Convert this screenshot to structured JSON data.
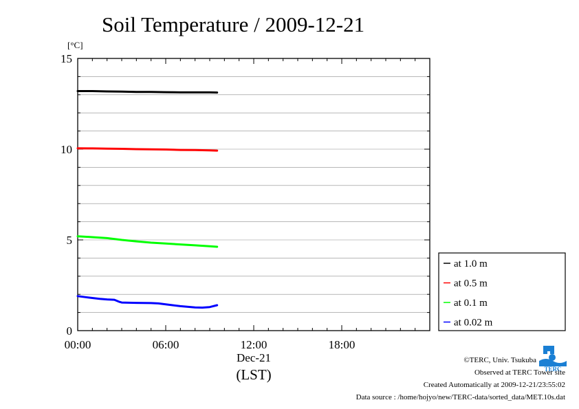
{
  "chart_data": {
    "type": "line",
    "title": "Soil Temperature / 2009-12-21",
    "y_unit_label": "[°C]",
    "ylim": [
      0,
      15
    ],
    "y_ticks": [
      0,
      5,
      10,
      15
    ],
    "y_minor_step": 1,
    "xlim_hours": [
      0,
      24
    ],
    "x_ticks": [
      {
        "hour": 0,
        "label": "00:00"
      },
      {
        "hour": 6,
        "label": "06:00"
      },
      {
        "hour": 12,
        "label": "12:00"
      },
      {
        "hour": 18,
        "label": "18:00"
      }
    ],
    "x_date_label": "Dec-21",
    "x_axis_label": "(LST)",
    "grid": true,
    "legend_position": "bottom-right outside",
    "series": [
      {
        "name": "at 1.0 m",
        "color": "#000000",
        "x": [
          0,
          1,
          2,
          3,
          4,
          5,
          6,
          7,
          8,
          9,
          9.5
        ],
        "y": [
          13.2,
          13.2,
          13.18,
          13.17,
          13.15,
          13.15,
          13.14,
          13.13,
          13.13,
          13.13,
          13.12
        ]
      },
      {
        "name": "at 0.5 m",
        "color": "#ff0000",
        "x": [
          0,
          1,
          2,
          3,
          4,
          5,
          6,
          7,
          8,
          9,
          9.5
        ],
        "y": [
          10.05,
          10.04,
          10.03,
          10.02,
          10.0,
          9.99,
          9.98,
          9.96,
          9.95,
          9.93,
          9.92
        ]
      },
      {
        "name": "at 0.1 m",
        "color": "#00ff00",
        "x": [
          0,
          1,
          2,
          3,
          4,
          5,
          6,
          7,
          8,
          9,
          9.5
        ],
        "y": [
          5.2,
          5.15,
          5.1,
          5.0,
          4.92,
          4.85,
          4.8,
          4.75,
          4.7,
          4.65,
          4.62
        ]
      },
      {
        "name": "at 0.02 m",
        "color": "#0000ff",
        "x": [
          0,
          0.5,
          1,
          1.5,
          2,
          2.5,
          2.8,
          3,
          4,
          5,
          5.5,
          6,
          7,
          8,
          8.5,
          9,
          9.5
        ],
        "y": [
          1.9,
          1.85,
          1.8,
          1.75,
          1.72,
          1.7,
          1.6,
          1.55,
          1.53,
          1.52,
          1.5,
          1.45,
          1.35,
          1.28,
          1.27,
          1.3,
          1.4
        ]
      }
    ]
  },
  "footer": {
    "credit": "©TERC, Univ. Tsukuba",
    "observed": "Observed at TERC Tower site",
    "created": "Created Automatically at 2009-12-21/23:55:02",
    "source": "Data source : /home/hojyo/new/TERC-data/sorted_data/MET.10s.dat"
  },
  "logo": {
    "text": "TERC",
    "color": "#1a7fd4"
  }
}
